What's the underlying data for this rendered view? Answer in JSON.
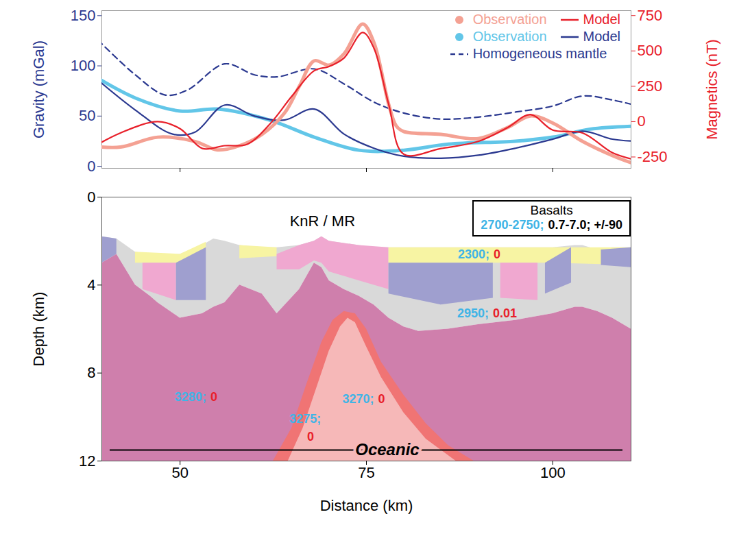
{
  "chart_data": [
    {
      "type": "line",
      "ylabel": "Gravity (mGal)",
      "y2label": "Magnetics (nT)",
      "xlim": [
        39.5,
        110.5
      ],
      "xticks": [
        50,
        75,
        100
      ],
      "ylim": [
        -2,
        155
      ],
      "yticks": [
        0,
        50,
        100,
        150
      ],
      "y2lim": [
        -330,
        785
      ],
      "y2ticks": [
        -250,
        0,
        250,
        500,
        750
      ],
      "legend": "top-right",
      "tick_labels": "y",
      "series": [
        {
          "name": "Observation",
          "color": "#f4a193",
          "axis": "y2",
          "marker": "circle",
          "line_style": "solid",
          "x": [
            38,
            42,
            47,
            52,
            55,
            58,
            61,
            64,
            66,
            68,
            70,
            72,
            74.5,
            76,
            78,
            79,
            80,
            85,
            90,
            94,
            97,
            100,
            104,
            108,
            111
          ],
          "values": [
            -172,
            -180,
            -110,
            -140,
            -200,
            -170,
            -90,
            60,
            250,
            430,
            400,
            480,
            690,
            560,
            120,
            -30,
            -70,
            -90,
            -120,
            -40,
            40,
            -10,
            -140,
            -240,
            -300
          ]
        },
        {
          "name": "Model",
          "color": "#e8202a",
          "axis": "y2",
          "line_style": "solid",
          "x": [
            38,
            42,
            47,
            50,
            53,
            56,
            59,
            62,
            65,
            68,
            70,
            72,
            74.5,
            76,
            78,
            80,
            85,
            90,
            94,
            97,
            100,
            104,
            108,
            111
          ],
          "values": [
            -190,
            -80,
            0,
            -50,
            -190,
            -170,
            -160,
            -20,
            180,
            360,
            390,
            450,
            630,
            520,
            120,
            -230,
            -190,
            -140,
            -40,
            50,
            -60,
            -80,
            -220,
            -270
          ]
        },
        {
          "name": "Observation",
          "color": "#62c6e8",
          "axis": "y",
          "marker": "circle",
          "line_style": "solid",
          "x": [
            38,
            44,
            50,
            55,
            62,
            68,
            74,
            80,
            86,
            95,
            100,
            105,
            111
          ],
          "values": [
            92,
            68,
            55,
            57,
            46,
            29,
            16,
            16,
            22,
            25,
            29,
            37,
            40
          ]
        },
        {
          "name": "Model",
          "color": "#2b3990",
          "axis": "y",
          "line_style": "solid",
          "x": [
            38,
            44,
            49,
            52,
            56,
            60,
            64,
            68,
            72,
            76,
            80,
            85,
            90,
            95,
            100,
            104,
            108,
            111
          ],
          "values": [
            92,
            56,
            32,
            34,
            61,
            50,
            46,
            57,
            32,
            18,
            10,
            8,
            11,
            18,
            27,
            35,
            27,
            25
          ]
        },
        {
          "name": "Homogeneous mantle",
          "color": "#2b3990",
          "axis": "y",
          "line_style": "dashed",
          "x": [
            38,
            44,
            48,
            51,
            56,
            60,
            63,
            68,
            72,
            76,
            80,
            85,
            90,
            95,
            100,
            104,
            108,
            111
          ],
          "values": [
            133,
            91,
            71,
            76,
            102,
            91,
            89,
            97,
            82,
            64,
            53,
            47,
            49,
            54,
            60,
            70,
            66,
            61
          ]
        }
      ]
    },
    {
      "type": "section",
      "xlabel": "Distance (km)",
      "ylabel": "Depth (km)",
      "xlim": [
        39.5,
        110.5
      ],
      "xticks": [
        50,
        75,
        100
      ],
      "ylim": [
        12,
        0
      ],
      "yticks": [
        0,
        4,
        8,
        12
      ],
      "layers": [
        {
          "color": "#d9d9d9",
          "x": [
            39.5,
            41.5,
            44,
            46,
            47,
            50,
            53,
            54.5,
            56,
            58,
            61,
            63,
            66,
            68,
            69,
            70,
            72,
            74,
            76,
            78,
            80,
            82,
            86,
            90,
            95,
            100,
            103,
            104,
            106,
            108,
            110.5
          ],
          "top": [
            1.8,
            1.9,
            2.5,
            2.6,
            2.6,
            2.6,
            2.2,
            1.9,
            2.0,
            2.2,
            2.3,
            2.3,
            2.2,
            2.0,
            1.8,
            2.0,
            2.1,
            2.2,
            2.3,
            2.3,
            2.3,
            2.3,
            2.3,
            2.3,
            2.3,
            2.3,
            2.2,
            2.2,
            2.4,
            2.3,
            2.3
          ],
          "bottom": [
            3.0,
            2.6,
            4.0,
            4.5,
            4.8,
            5.5,
            5.3,
            5.0,
            4.8,
            4.0,
            4.4,
            5.3,
            4.2,
            3.0,
            3.2,
            3.8,
            4.2,
            4.5,
            4.9,
            5.5,
            5.9,
            6.1,
            6.0,
            5.8,
            5.6,
            5.3,
            5.0,
            5.0,
            5.2,
            5.5,
            6.0
          ]
        },
        {
          "color": "#cf7fac",
          "x": [
            39.5,
            41.5,
            44,
            46,
            47,
            50,
            53,
            54.5,
            56,
            58,
            61,
            63,
            66,
            68,
            69,
            70,
            72,
            74,
            76,
            78,
            80,
            82,
            86,
            90,
            95,
            100,
            103,
            104,
            106,
            108,
            110.5
          ],
          "top": [
            3.0,
            2.6,
            4.0,
            4.5,
            4.8,
            5.5,
            5.3,
            5.0,
            4.8,
            4.0,
            4.4,
            5.3,
            4.2,
            3.0,
            3.2,
            3.8,
            4.2,
            4.5,
            4.9,
            5.5,
            5.9,
            6.1,
            6.0,
            5.8,
            5.6,
            5.3,
            5.0,
            5.0,
            5.2,
            5.5,
            6.0
          ],
          "bottom": [
            12,
            12,
            12,
            12,
            12,
            12,
            12,
            12,
            12,
            12,
            12,
            12,
            12,
            12,
            12,
            12,
            12,
            12,
            12,
            12,
            12,
            12,
            12,
            12,
            12,
            12,
            12,
            12,
            12,
            12,
            12
          ]
        },
        {
          "color": "#f07474",
          "x": [
            62.5,
            65,
            67,
            69,
            70.5,
            72,
            73.5,
            75,
            77,
            80,
            83,
            86,
            89.4
          ],
          "top": [
            12,
            10.5,
            8.5,
            6.6,
            5.6,
            5.2,
            5.3,
            6.0,
            7.5,
            9,
            10.3,
            11.3,
            12
          ],
          "bottom": [
            12,
            12,
            12,
            12,
            12,
            12,
            12,
            12,
            12,
            12,
            12,
            12,
            12
          ]
        },
        {
          "color": "#f6b8b8",
          "x": [
            64.5,
            66.5,
            68.5,
            70,
            71.5,
            72.5,
            73.5,
            75,
            77,
            80,
            83,
            87
          ],
          "top": [
            12,
            10.5,
            8.5,
            7,
            5.9,
            5.5,
            5.7,
            6.8,
            8.2,
            9.8,
            11,
            12
          ],
          "bottom": [
            12,
            12,
            12,
            12,
            12,
            12,
            12,
            12,
            12,
            12,
            12,
            12
          ]
        },
        {
          "color": "#9f9fcf",
          "x": [
            39.5,
            41.5
          ],
          "top": [
            1.8,
            1.9
          ],
          "bottom": [
            3.0,
            2.6
          ]
        },
        {
          "color": "#f7f4a3",
          "x": [
            44,
            50,
            53.5
          ],
          "top": [
            2.5,
            2.6,
            2.05
          ],
          "bottom": [
            3.0,
            3.0,
            2.4
          ]
        },
        {
          "color": "#f0a8d0",
          "x": [
            45,
            49.5
          ],
          "top": [
            3.0,
            3.0
          ],
          "bottom": [
            4.2,
            4.7
          ]
        },
        {
          "color": "#9f9fcf",
          "x": [
            49.5,
            53.5
          ],
          "top": [
            3.0,
            2.3
          ],
          "bottom": [
            4.7,
            4.7
          ]
        },
        {
          "color": "#f7f4a3",
          "x": [
            58,
            63
          ],
          "top": [
            2.2,
            2.3
          ],
          "bottom": [
            2.8,
            2.7
          ]
        },
        {
          "color": "#f0a8d0",
          "x": [
            63,
            66,
            68,
            69,
            70,
            74,
            78
          ],
          "top": [
            2.6,
            2.2,
            2.0,
            1.8,
            2.0,
            2.2,
            2.3
          ],
          "bottom": [
            3.3,
            3.3,
            2.9,
            3.0,
            3.4,
            3.8,
            4.2
          ]
        },
        {
          "color": "#f7f4a3",
          "x": [
            78,
            90,
            100,
            110.5
          ],
          "top": [
            2.3,
            2.3,
            2.3,
            2.3
          ],
          "bottom": [
            3.0,
            3.0,
            3.0,
            3.1
          ]
        },
        {
          "color": "#9f9fcf",
          "x": [
            78,
            85,
            92
          ],
          "top": [
            3.0,
            3.0,
            3.0
          ],
          "bottom": [
            4.4,
            4.9,
            4.6
          ]
        },
        {
          "color": "#f0a8d0",
          "x": [
            93,
            98
          ],
          "top": [
            3.0,
            3.0
          ],
          "bottom": [
            4.6,
            4.7
          ]
        },
        {
          "color": "#9f9fcf",
          "x": [
            99,
            102.5
          ],
          "top": [
            3.0,
            2.3
          ],
          "bottom": [
            4.4,
            3.9
          ]
        },
        {
          "color": "#9f9fcf",
          "x": [
            106.5,
            110.5
          ],
          "top": [
            2.4,
            2.3
          ],
          "bottom": [
            3.1,
            3.2
          ]
        }
      ],
      "annotations": [
        {
          "x": 69.1,
          "depth": 1.1,
          "parts": [
            {
              "text": "KnR / MR",
              "color": "#000000"
            }
          ]
        },
        {
          "x": 91.7,
          "depth": 2.6,
          "parts": [
            {
              "text": "2300;",
              "color": "#40b4e6"
            },
            {
              "text": "0",
              "color": "#e8202a"
            }
          ]
        },
        {
          "x": 91.6,
          "depth": 5.3,
          "parts": [
            {
              "text": "2950;",
              "color": "#40b4e6"
            },
            {
              "text": "0.01",
              "color": "#e8202a"
            }
          ]
        },
        {
          "x": 53.7,
          "depth": 9.1,
          "parts": [
            {
              "text": "3280;",
              "color": "#40b4e6"
            },
            {
              "text": "0",
              "color": "#e8202a"
            }
          ]
        },
        {
          "x": 76.2,
          "depth": 9.2,
          "parts": [
            {
              "text": "3270;",
              "color": "#40b4e6"
            },
            {
              "text": "0",
              "color": "#e8202a"
            }
          ]
        },
        {
          "x": 66.8,
          "depth": 10.1,
          "parts": [
            {
              "text": "3275;",
              "color": "#40b4e6"
            }
          ]
        },
        {
          "x": 67.5,
          "depth": 10.9,
          "parts": [
            {
              "text": "0",
              "color": "#e8202a"
            }
          ]
        },
        {
          "x": 77.8,
          "depth": 11.5,
          "line_x": [
            40.6,
            109.4
          ],
          "parts": [
            {
              "text": "Oceanic",
              "color": "#000000"
            }
          ]
        }
      ],
      "box": {
        "title": "Basalts",
        "parts": [
          {
            "text": "2700-2750;",
            "color": "#40b4e6"
          },
          {
            "text": "0.7-7.0; +/-90",
            "color": "#000000"
          }
        ]
      }
    }
  ]
}
